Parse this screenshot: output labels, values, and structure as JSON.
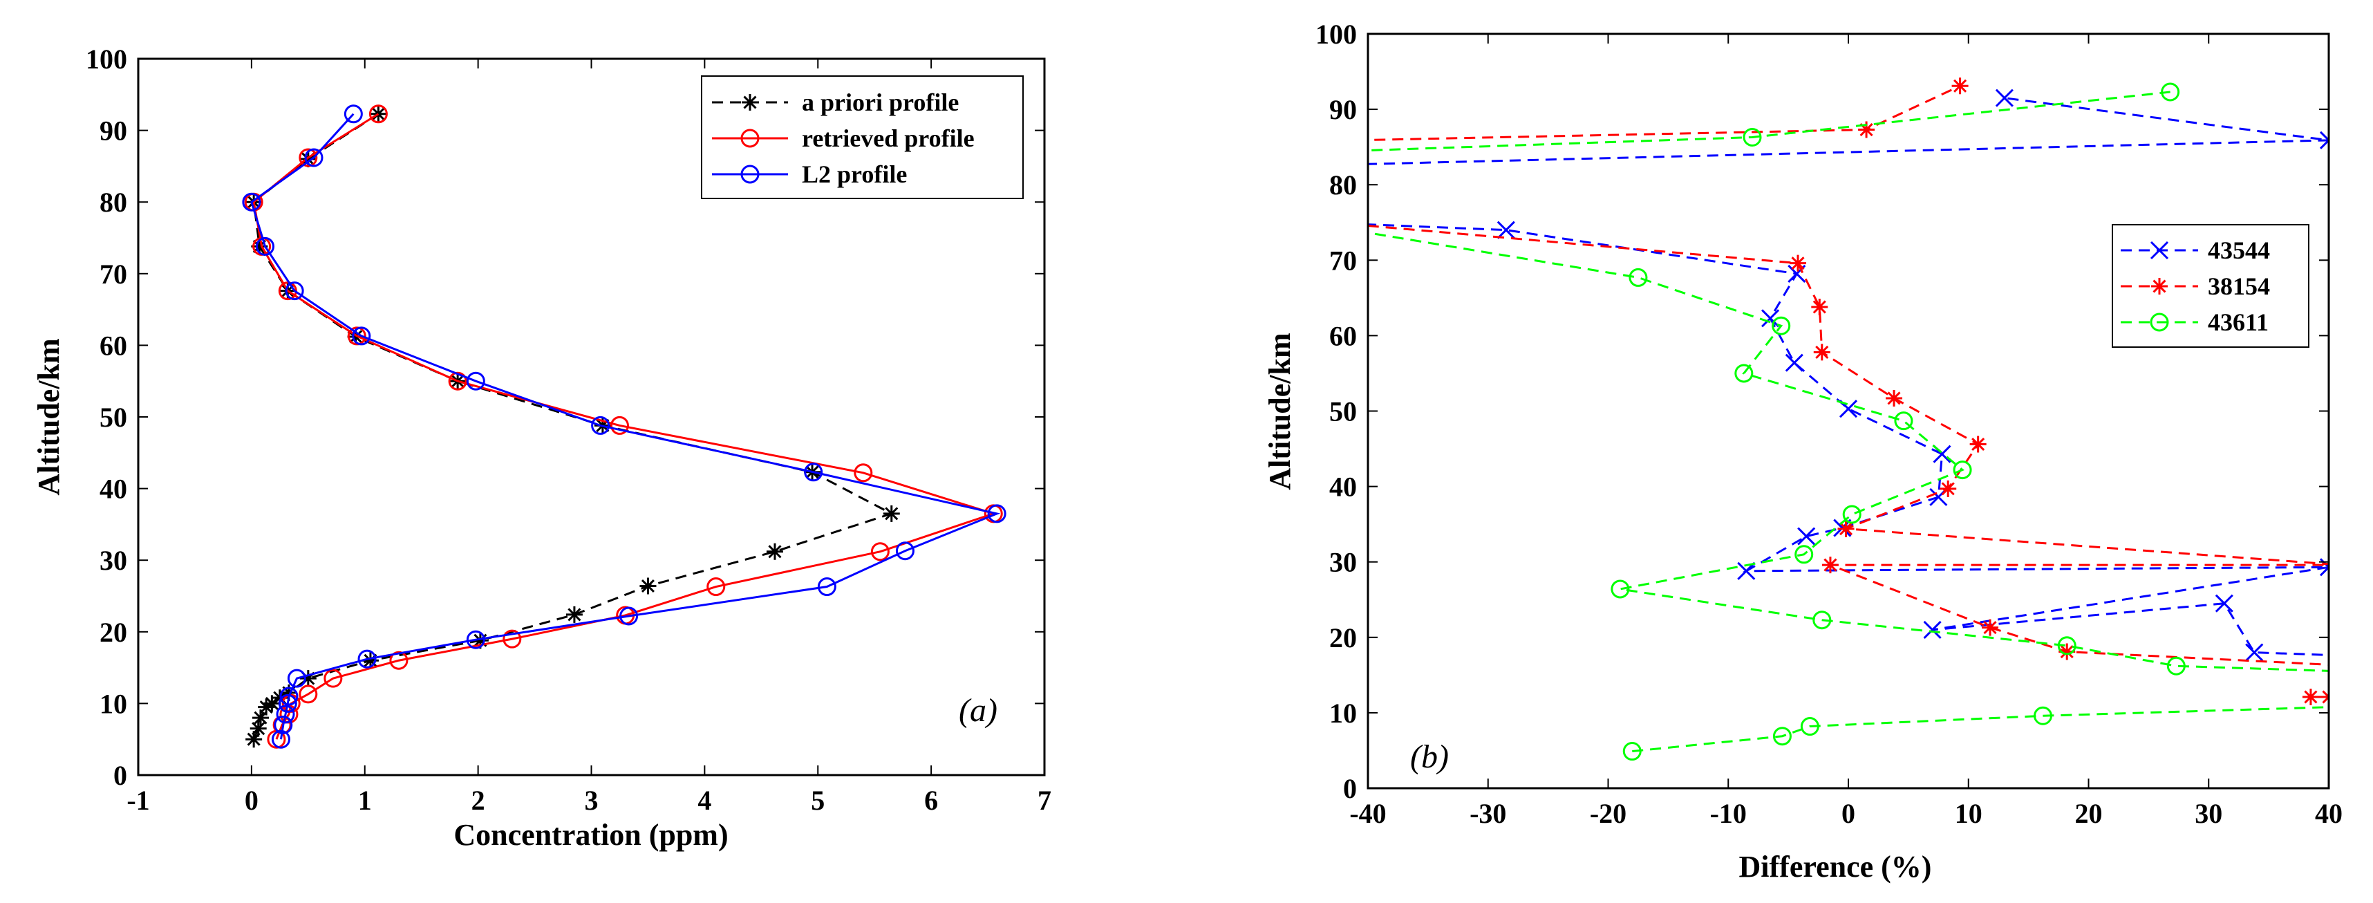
{
  "figure": {
    "panels": [
      "(a)",
      "(b)"
    ]
  },
  "chart_data": [
    {
      "type": "line",
      "panel_label": "(a)",
      "title": "",
      "xlabel": "Concentration (ppm)",
      "ylabel": "Altitude/km",
      "xlim": [
        -1,
        7
      ],
      "ylim": [
        0,
        100
      ],
      "xticks": [
        -1,
        0,
        1,
        2,
        3,
        4,
        5,
        6,
        7
      ],
      "yticks": [
        0,
        10,
        20,
        30,
        40,
        50,
        60,
        70,
        80,
        90,
        100
      ],
      "grid": false,
      "legend_position": "top-right",
      "series": [
        {
          "name": "a priori profile",
          "color": "#000000",
          "linestyle": "dashed",
          "marker": "asterisk",
          "x": [
            0.02,
            0.06,
            0.08,
            0.13,
            0.18,
            0.25,
            0.33,
            0.5,
            1.05,
            2.02,
            2.85,
            3.5,
            4.62,
            5.65,
            4.95,
            3.1,
            1.82,
            0.92,
            0.32,
            0.07,
            0.02,
            0.5,
            1.12
          ],
          "y": [
            5,
            6.5,
            8,
            9.5,
            10,
            10.8,
            11.5,
            13.5,
            16,
            18.8,
            22.4,
            26.4,
            31.2,
            36.5,
            42.3,
            48.8,
            55,
            61.2,
            67.6,
            73.8,
            80,
            86,
            92.3
          ]
        },
        {
          "name": "retrieved profile",
          "color": "#ff0000",
          "linestyle": "solid",
          "marker": "circle",
          "x": [
            0.22,
            0.27,
            0.33,
            0.35,
            0.5,
            0.72,
            1.3,
            2.3,
            3.3,
            4.1,
            5.55,
            6.55,
            5.4,
            3.25,
            1.82,
            0.93,
            0.32,
            0.09,
            0.02,
            0.5,
            1.12
          ],
          "y": [
            5,
            7,
            8.5,
            10,
            11.3,
            13.5,
            16,
            19,
            22.3,
            26.3,
            31.2,
            36.5,
            42.2,
            48.8,
            55,
            61.3,
            67.6,
            73.8,
            80,
            86.2,
            92.3
          ]
        },
        {
          "name": "L2 profile",
          "color": "#0000ff",
          "linestyle": "solid",
          "marker": "circle",
          "x": [
            0.26,
            0.28,
            0.3,
            0.32,
            0.33,
            0.4,
            1.02,
            1.98,
            3.33,
            5.08,
            5.77,
            6.58,
            4.96,
            3.08,
            1.98,
            0.97,
            0.38,
            0.12,
            0.0,
            0.55,
            0.9
          ],
          "y": [
            5,
            7,
            8.5,
            10,
            11,
            13.5,
            16.2,
            18.9,
            22.2,
            26.3,
            31.3,
            36.5,
            42.3,
            48.8,
            55,
            61.3,
            67.6,
            73.8,
            80,
            86.2,
            92.3
          ]
        }
      ]
    },
    {
      "type": "line",
      "panel_label": "(b)",
      "title": "",
      "xlabel": "Difference (%)",
      "ylabel": "Altitude/km",
      "xlim": [
        -40,
        40
      ],
      "ylim": [
        0,
        100
      ],
      "xticks": [
        -40,
        -30,
        -20,
        -10,
        0,
        10,
        20,
        30,
        40
      ],
      "yticks": [
        0,
        10,
        20,
        30,
        40,
        50,
        60,
        70,
        80,
        90,
        100
      ],
      "grid": false,
      "legend_position": "top-right",
      "series": [
        {
          "name": "43544",
          "color": "#0000ff",
          "linestyle": "dashed",
          "marker": "x",
          "x": [
            41,
            33.8,
            31.3,
            7,
            40,
            -8.5,
            -3.5,
            -0.5,
            7.5,
            7.8,
            0,
            -4.5,
            -6.5,
            -4.3,
            -28.5,
            -41,
            -41,
            40,
            13
          ],
          "y": [
            17.6,
            18,
            24.5,
            21,
            29.3,
            28.8,
            33.4,
            34.5,
            38.6,
            44.3,
            50.3,
            56.4,
            62.3,
            68.2,
            74,
            74.8,
            82.7,
            85.9,
            91.5
          ]
        },
        {
          "name": "38154",
          "color": "#ff0000",
          "linestyle": "dashed",
          "marker": "asterisk",
          "x": [
            38.5,
            40,
            41,
            18.2,
            11.8,
            -1.5,
            41,
            -0.2,
            8.3,
            10.8,
            3.8,
            -2.2,
            -2.4,
            -4.2,
            -41,
            -41,
            1.5,
            9.3
          ],
          "y": [
            12.1,
            12.1,
            16.3,
            18.1,
            21.3,
            29.6,
            29.6,
            34.4,
            39.7,
            45.6,
            51.7,
            57.8,
            63.8,
            69.6,
            74.7,
            85.9,
            87.3,
            93.1
          ]
        },
        {
          "name": "43611",
          "color": "#00ff00",
          "linestyle": "dashed",
          "marker": "circle",
          "x": [
            -18,
            -5.5,
            -3.2,
            16.2,
            41,
            41,
            27.3,
            18.2,
            -2.2,
            -19,
            -3.7,
            0.3,
            9.5,
            4.6,
            -8.7,
            -5.6,
            -17.5,
            -41,
            -41,
            -8,
            26.8
          ],
          "y": [
            4.9,
            6.9,
            8.2,
            9.6,
            10.8,
            15.5,
            16.2,
            18.9,
            22.3,
            26.4,
            31,
            36.3,
            42.2,
            48.7,
            55,
            61.3,
            67.7,
            73.9,
            84.5,
            86.3,
            92.3
          ]
        }
      ]
    }
  ]
}
